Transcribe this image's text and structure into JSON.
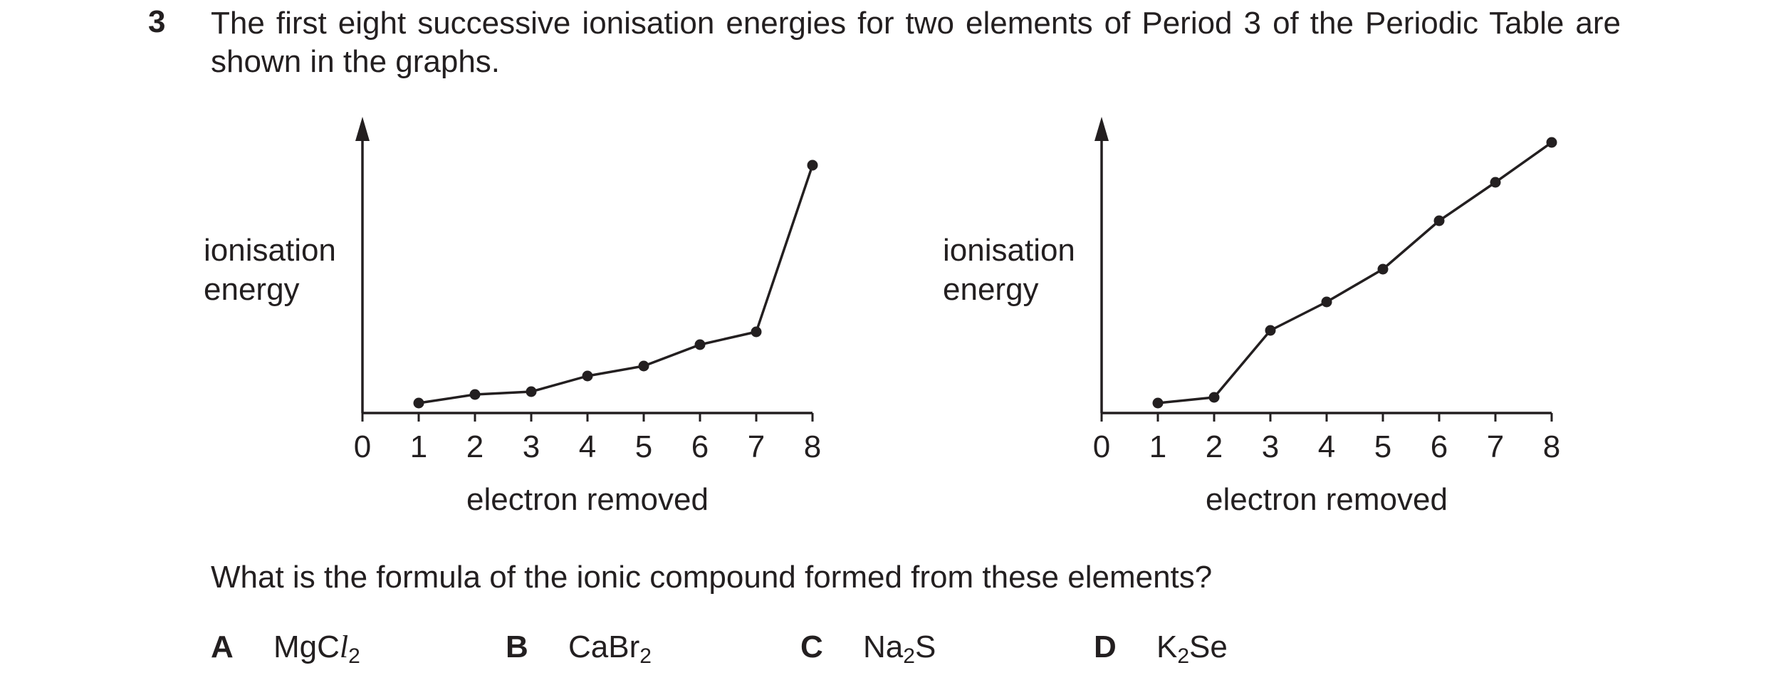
{
  "question": {
    "number": "3",
    "stem": "The first eight successive ionisation energies for two elements of Period 3 of the Periodic Table are shown in the graphs.",
    "prompt": "What is the formula of the ionic compound formed from these elements?"
  },
  "chart_data": [
    {
      "type": "line",
      "title": "",
      "xlabel": "electron removed",
      "ylabel_lines": [
        "ionisation",
        "energy"
      ],
      "x_ticks": [
        "0",
        "1",
        "2",
        "3",
        "4",
        "5",
        "6",
        "7",
        "8"
      ],
      "xlim": [
        0,
        8
      ],
      "ylim": [
        0,
        10
      ],
      "y_ticks_shown": false,
      "grid": false,
      "x": [
        1,
        2,
        3,
        4,
        5,
        6,
        7,
        8
      ],
      "y": [
        0.35,
        0.65,
        0.75,
        1.3,
        1.65,
        2.4,
        2.85,
        8.7
      ]
    },
    {
      "type": "line",
      "title": "",
      "xlabel": "electron removed",
      "ylabel_lines": [
        "ionisation",
        "energy"
      ],
      "x_ticks": [
        "0",
        "1",
        "2",
        "3",
        "4",
        "5",
        "6",
        "7",
        "8"
      ],
      "xlim": [
        0,
        8
      ],
      "ylim": [
        0,
        10
      ],
      "y_ticks_shown": false,
      "grid": false,
      "x": [
        1,
        2,
        3,
        4,
        5,
        6,
        7,
        8
      ],
      "y": [
        0.35,
        0.55,
        2.9,
        3.9,
        5.05,
        6.75,
        8.1,
        9.5
      ]
    }
  ],
  "options": [
    {
      "letter": "A",
      "pre": "MgC",
      "italic": "l",
      "sub": "2",
      "post": ""
    },
    {
      "letter": "B",
      "pre": "CaBr",
      "italic": "",
      "sub": "2",
      "post": ""
    },
    {
      "letter": "C",
      "pre": "Na",
      "italic": "",
      "sub": "2",
      "post": "S"
    },
    {
      "letter": "D",
      "pre": "K",
      "italic": "",
      "sub": "2",
      "post": "Se"
    }
  ],
  "colors": {
    "ink": "#231f20",
    "background": "#ffffff"
  }
}
